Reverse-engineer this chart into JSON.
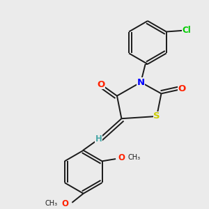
{
  "background_color": "#ebebeb",
  "bond_color": "#1a1a1a",
  "atom_colors": {
    "N": "#0000ff",
    "O": "#ff2200",
    "S": "#cccc00",
    "Cl": "#00cc00",
    "H": "#4aa8a8",
    "C": "#1a1a1a"
  },
  "font_size_atoms": 8.5,
  "figsize": [
    3.0,
    3.0
  ],
  "dpi": 100,
  "lw": 1.4
}
